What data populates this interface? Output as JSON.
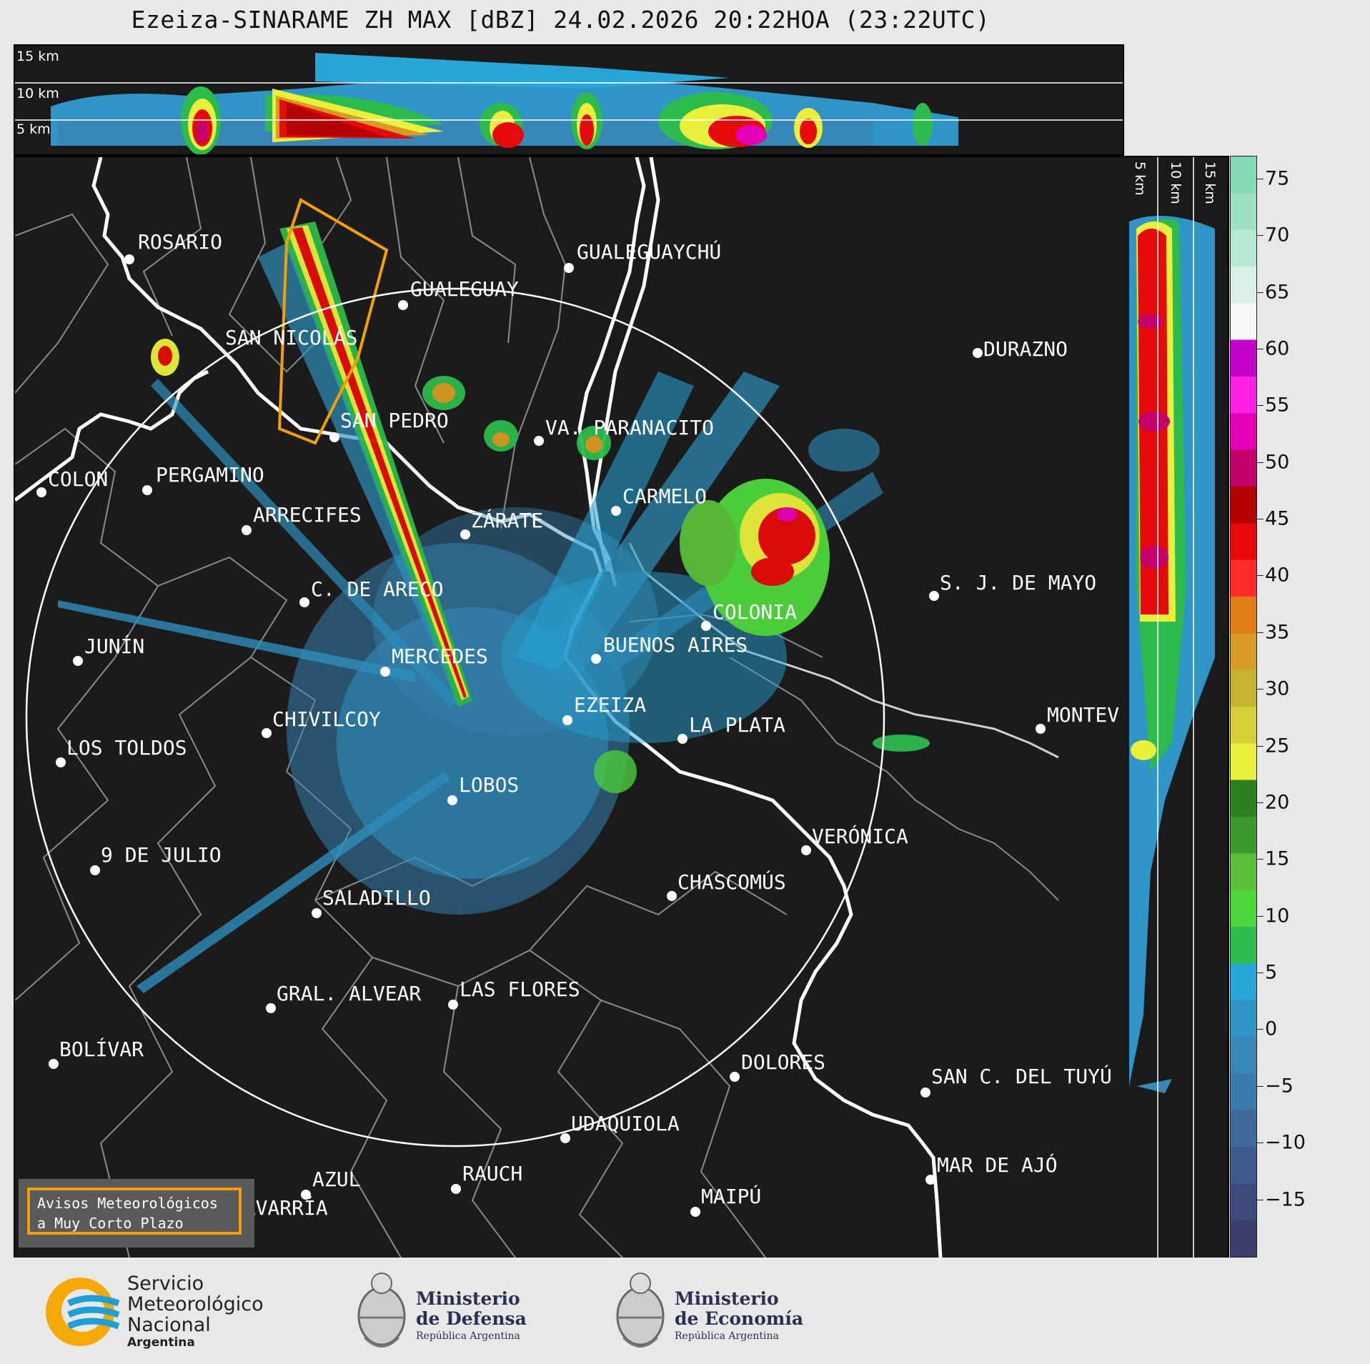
{
  "title": "Ezeiza-SINARAME ZH MAX [dBZ] 24.02.2026 20:22HOA (23:22UTC)",
  "top_panel": {
    "height_labels": [
      "15 km",
      "10 km",
      "5 km"
    ]
  },
  "side_panel": {
    "height_labels": [
      "5 km",
      "10 km",
      "15 km"
    ]
  },
  "colorbar": {
    "ticks": [
      "75",
      "70",
      "65",
      "60",
      "55",
      "50",
      "45",
      "40",
      "35",
      "30",
      "25",
      "20",
      "15",
      "10",
      "5",
      "0",
      "−5",
      "−10",
      "−15"
    ],
    "range": [
      -20,
      77
    ],
    "colors": [
      "#3c3f6e",
      "#3e4a7e",
      "#415a8e",
      "#3f6b9c",
      "#3b7aab",
      "#3787b8",
      "#2f95c6",
      "#27a6d8",
      "#2cbb4c",
      "#4ed63e",
      "#58c03a",
      "#3b9a2e",
      "#2e7e22",
      "#e9ef3a",
      "#d4cf38",
      "#c6b42e",
      "#d89a22",
      "#e07e14",
      "#ff2a2a",
      "#e60a0a",
      "#b40000",
      "#c4006a",
      "#e400b4",
      "#ff20e0",
      "#c200c8",
      "#f8f8f8",
      "#d8f0e6",
      "#b8e8d2",
      "#9ee0c2",
      "#84dab4"
    ]
  },
  "cities": [
    {
      "name": "ROSARIO"
    },
    {
      "name": "GUALEGUAYCHÚ"
    },
    {
      "name": "GUALEGUAY"
    },
    {
      "name": "SAN NICOLÁS"
    },
    {
      "name": "DURAZNO"
    },
    {
      "name": "SAN PEDRO"
    },
    {
      "name": "VA. PARANACITO"
    },
    {
      "name": "COLON"
    },
    {
      "name": "PERGAMINO"
    },
    {
      "name": "CARMELO"
    },
    {
      "name": "ARRECIFES"
    },
    {
      "name": "ZÁRATE"
    },
    {
      "name": "S. J. DE MAYO"
    },
    {
      "name": "C. DE ARECO"
    },
    {
      "name": "COLONIA"
    },
    {
      "name": "JUNÍN"
    },
    {
      "name": "BUENOS AIRES"
    },
    {
      "name": "MERCEDES"
    },
    {
      "name": "MONTEV"
    },
    {
      "name": "EZEIZA"
    },
    {
      "name": "CHIVILCOY"
    },
    {
      "name": "LA PLATA"
    },
    {
      "name": "LOS TOLDOS"
    },
    {
      "name": "LOBOS"
    },
    {
      "name": "VERÓNICA"
    },
    {
      "name": "9 DE JULIO"
    },
    {
      "name": "CHASCOMÚS"
    },
    {
      "name": "SALADILLO"
    },
    {
      "name": "GRAL. ALVEAR"
    },
    {
      "name": "LAS FLORES"
    },
    {
      "name": "BOLÍVAR"
    },
    {
      "name": "DOLORES"
    },
    {
      "name": "SAN C. DEL TUYÚ"
    },
    {
      "name": "UDAQUIOLA"
    },
    {
      "name": "MAR DE AJÓ"
    },
    {
      "name": "RAUCH"
    },
    {
      "name": "AZUL"
    },
    {
      "name": "MAIPÚ"
    },
    {
      "name": "OLAVARRÍA"
    }
  ],
  "warning_box": {
    "line1": "Avisos Meteorológicos",
    "line2": "a Muy Corto Plazo"
  },
  "footer": {
    "smn": {
      "line1": "Servicio",
      "line2": "Meteorológico",
      "line3": "Nacional",
      "line4": "Argentina"
    },
    "defensa": {
      "line1": "Ministerio",
      "line2": "de Defensa",
      "line3": "República Argentina"
    },
    "economia": {
      "line1": "Ministerio",
      "line2": "de Economía",
      "line3": "República Argentina"
    }
  }
}
